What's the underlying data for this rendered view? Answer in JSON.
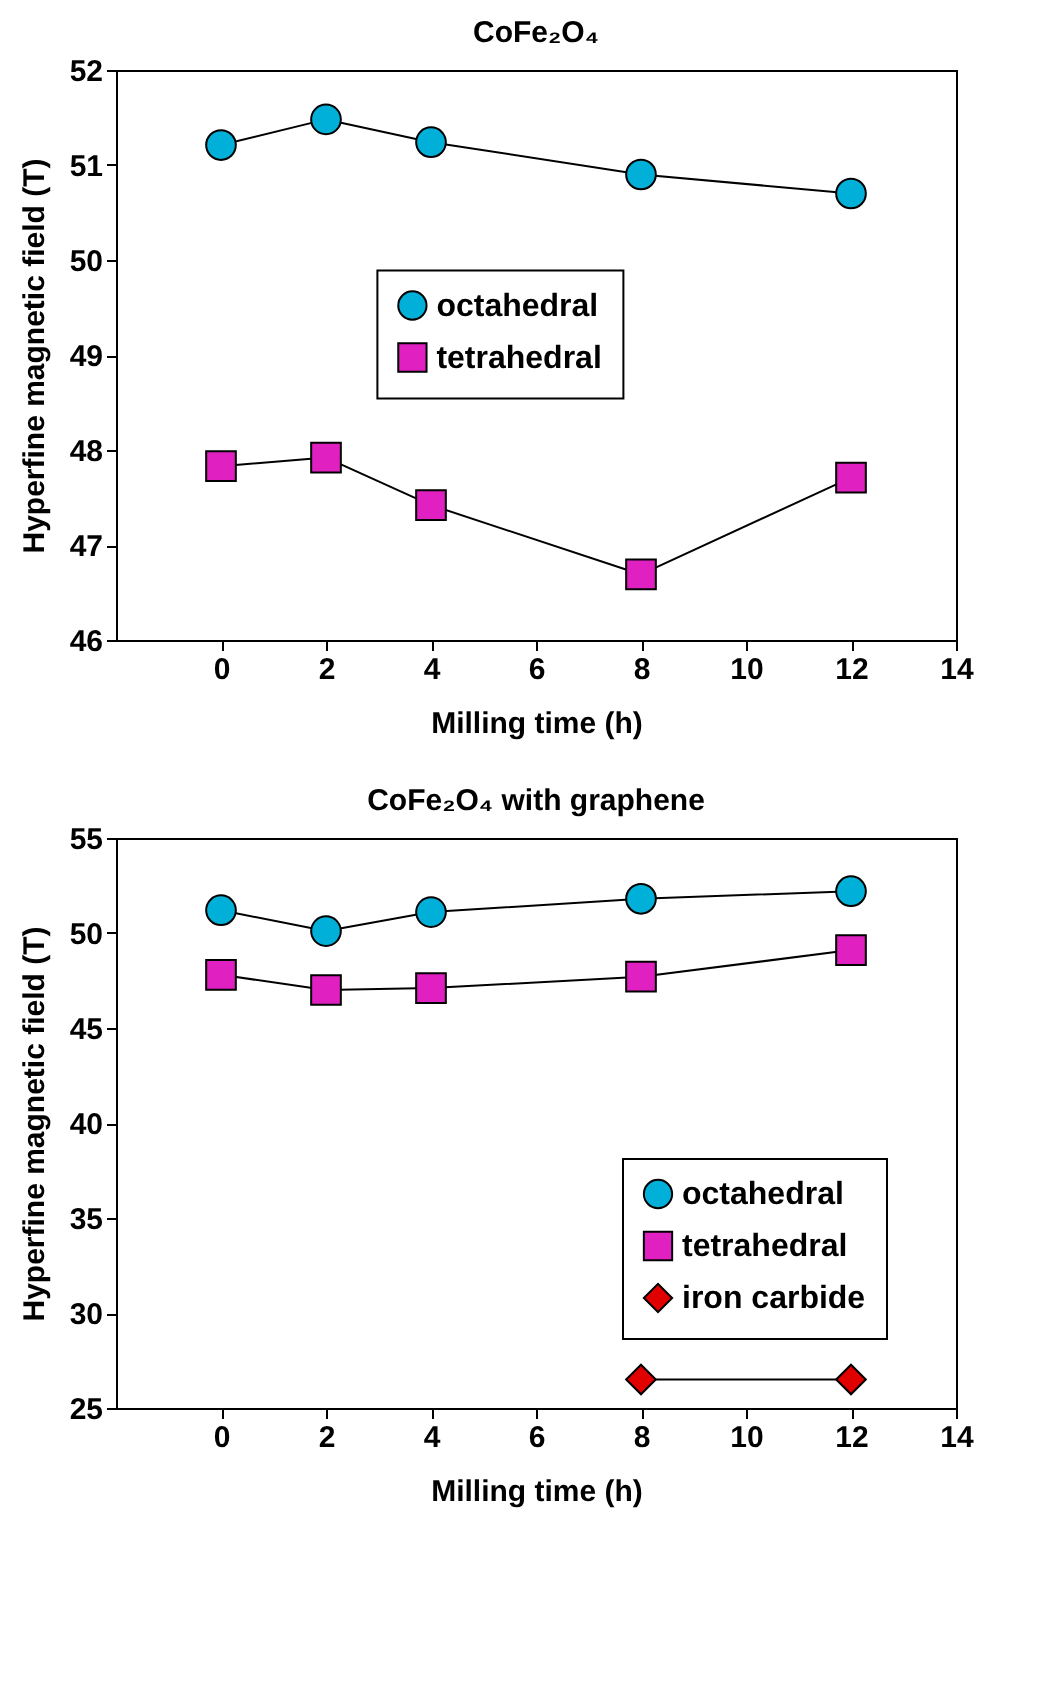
{
  "chart_data": [
    {
      "type": "line",
      "title": "CoFe₂O₄",
      "xlabel": "Milling time (h)",
      "ylabel": "Hyperfine magnetic field (T)",
      "x": [
        0,
        2,
        4,
        8,
        12
      ],
      "series": [
        {
          "name": "octahedral",
          "color": "#00b0d8",
          "marker": "circle",
          "values": [
            51.21,
            51.48,
            51.24,
            50.9,
            50.7
          ]
        },
        {
          "name": "tetrahedral",
          "color": "#e020c0",
          "marker": "square",
          "values": [
            47.83,
            47.92,
            47.42,
            46.69,
            47.71
          ]
        }
      ],
      "xlim": [
        -2,
        14
      ],
      "xticks": [
        0,
        2,
        4,
        6,
        8,
        10,
        12,
        14
      ],
      "ylim": [
        46,
        52
      ],
      "yticks": [
        46,
        47,
        48,
        49,
        50,
        51,
        52
      ],
      "grid": false,
      "legend": "center"
    },
    {
      "type": "line",
      "title": "CoFe₂O₄ with graphene",
      "xlabel": "Milling time (h)",
      "ylabel": "Hyperfine magnetic field (T)",
      "x": [
        0,
        2,
        4,
        8,
        12
      ],
      "series": [
        {
          "name": "octahedral",
          "color": "#00b0d8",
          "marker": "circle",
          "values": [
            51.2,
            50.1,
            51.1,
            51.8,
            52.2
          ]
        },
        {
          "name": "tetrahedral",
          "color": "#e020c0",
          "marker": "square",
          "values": [
            47.8,
            47.0,
            47.1,
            47.7,
            49.1
          ]
        },
        {
          "name": "iron carbide",
          "color": "#e00000",
          "marker": "diamond",
          "values": [
            null,
            null,
            null,
            26.5,
            26.5
          ]
        }
      ],
      "xlim": [
        -2,
        14
      ],
      "xticks": [
        0,
        2,
        4,
        6,
        8,
        10,
        12,
        14
      ],
      "ylim": [
        25,
        55
      ],
      "yticks": [
        25,
        30,
        35,
        40,
        45,
        50,
        55
      ],
      "grid": false,
      "legend": "bottom right"
    }
  ]
}
